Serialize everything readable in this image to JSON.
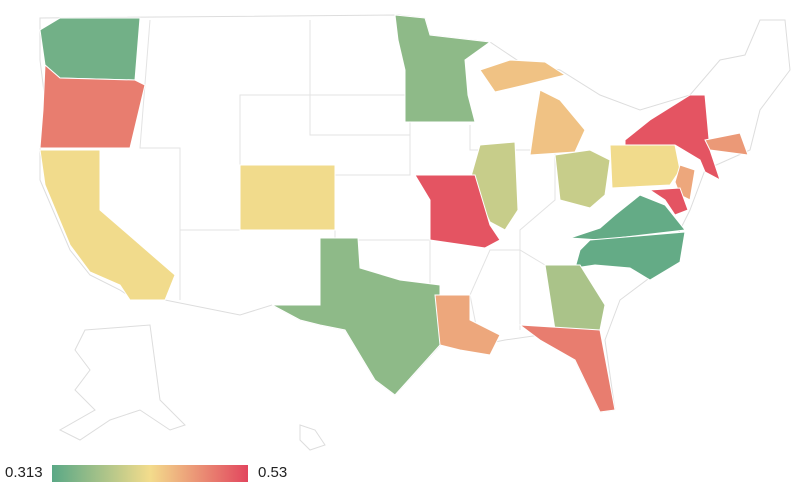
{
  "chart_data": {
    "type": "choropleth",
    "values": [
      0.33,
      0.49,
      0.42,
      0.42,
      0.35,
      0.44,
      0.39,
      0.39,
      0.42,
      0.52,
      0.47,
      0.46,
      0.52,
      0.32,
      0.32,
      0.52,
      0.35,
      0.46,
      0.37,
      0.49
    ],
    "colorscale": [
      "#5aa886",
      "#f3dc8c",
      "#e2465e"
    ],
    "colorbar": {
      "min": 0.313,
      "max": 0.53
    }
  }
}
